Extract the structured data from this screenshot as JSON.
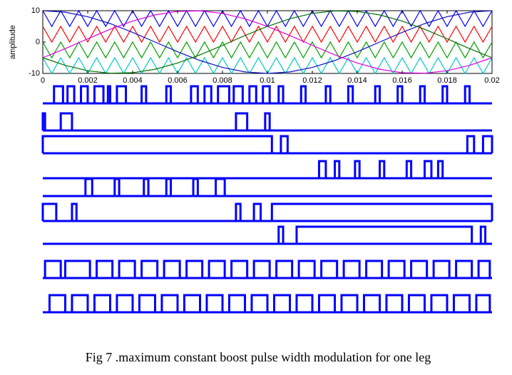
{
  "chart_data": [
    {
      "type": "line",
      "ylabel": "amplitude",
      "xlim": [
        0,
        0.02
      ],
      "ylim": [
        -10,
        10
      ],
      "xticks": [
        0,
        0.002,
        0.004,
        0.006,
        0.008,
        0.01,
        0.012,
        0.014,
        0.016,
        0.018,
        0.02
      ],
      "yticks": [
        10,
        0,
        -10
      ],
      "series": [
        {
          "color": "#0000ff",
          "x": [
            0,
            0.0004,
            0.0008,
            0.0012,
            0.0016,
            0.002,
            0.0024,
            0.0028,
            0.0032,
            0.0036,
            0.004,
            0.0044,
            0.0048,
            0.0052,
            0.0056,
            0.006,
            0.0064,
            0.0068,
            0.0072,
            0.0076,
            0.008,
            0.0084,
            0.0088,
            0.0092,
            0.0096,
            0.01,
            0.0104,
            0.0108,
            0.0112,
            0.0116,
            0.012,
            0.0124,
            0.0128,
            0.0132,
            0.0136,
            0.014,
            0.0144,
            0.0148,
            0.0152,
            0.0156,
            0.016,
            0.0164,
            0.0168,
            0.0172,
            0.0176,
            0.018,
            0.0184,
            0.0188,
            0.0192,
            0.0196,
            0.02
          ],
          "values": [
            10,
            5,
            10,
            5,
            10,
            5,
            10,
            5,
            10,
            5,
            10,
            5,
            10,
            5,
            10,
            5,
            10,
            5,
            10,
            5,
            10,
            5,
            10,
            5,
            10,
            5,
            10,
            5,
            10,
            5,
            10,
            5,
            10,
            5,
            10,
            5,
            10,
            5,
            10,
            5,
            10,
            5,
            10,
            5,
            10,
            5,
            10,
            5,
            10,
            5,
            10
          ]
        },
        {
          "color": "#ff0000",
          "x": [
            0,
            0.0004,
            0.0008,
            0.0012,
            0.0016,
            0.002,
            0.0024,
            0.0028,
            0.0032,
            0.0036,
            0.004,
            0.0044,
            0.0048,
            0.0052,
            0.0056,
            0.006,
            0.0064,
            0.0068,
            0.0072,
            0.0076,
            0.008,
            0.0084,
            0.0088,
            0.0092,
            0.0096,
            0.01,
            0.0104,
            0.0108,
            0.0112,
            0.0116,
            0.012,
            0.0124,
            0.0128,
            0.0132,
            0.0136,
            0.014,
            0.0144,
            0.0148,
            0.0152,
            0.0156,
            0.016,
            0.0164,
            0.0168,
            0.0172,
            0.0176,
            0.018,
            0.0184,
            0.0188,
            0.0192,
            0.0196,
            0.02
          ],
          "values": [
            5,
            0,
            5,
            0,
            5,
            0,
            5,
            0,
            5,
            0,
            5,
            0,
            5,
            0,
            5,
            0,
            5,
            0,
            5,
            0,
            5,
            0,
            5,
            0,
            5,
            0,
            5,
            0,
            5,
            0,
            5,
            0,
            5,
            0,
            5,
            0,
            5,
            0,
            5,
            0,
            5,
            0,
            5,
            0,
            5,
            0,
            5,
            0,
            5,
            0,
            5
          ]
        },
        {
          "color": "#00a000",
          "x": [
            0,
            0.0004,
            0.0008,
            0.0012,
            0.0016,
            0.002,
            0.0024,
            0.0028,
            0.0032,
            0.0036,
            0.004,
            0.0044,
            0.0048,
            0.0052,
            0.0056,
            0.006,
            0.0064,
            0.0068,
            0.0072,
            0.0076,
            0.008,
            0.0084,
            0.0088,
            0.0092,
            0.0096,
            0.01,
            0.0104,
            0.0108,
            0.0112,
            0.0116,
            0.012,
            0.0124,
            0.0128,
            0.0132,
            0.0136,
            0.014,
            0.0144,
            0.0148,
            0.0152,
            0.0156,
            0.016,
            0.0164,
            0.0168,
            0.0172,
            0.0176,
            0.018,
            0.0184,
            0.0188,
            0.0192,
            0.0196,
            0.02
          ],
          "values": [
            0,
            -5,
            0,
            -5,
            0,
            -5,
            0,
            -5,
            0,
            -5,
            0,
            -5,
            0,
            -5,
            0,
            -5,
            0,
            -5,
            0,
            -5,
            0,
            -5,
            0,
            -5,
            0,
            -5,
            0,
            -5,
            0,
            -5,
            0,
            -5,
            0,
            -5,
            0,
            -5,
            0,
            -5,
            0,
            -5,
            0,
            -5,
            0,
            -5,
            0,
            -5,
            0,
            -5,
            0,
            -5,
            0
          ]
        },
        {
          "color": "#00c8c8",
          "x": [
            0,
            0.0004,
            0.0008,
            0.0012,
            0.0016,
            0.002,
            0.0024,
            0.0028,
            0.0032,
            0.0036,
            0.004,
            0.0044,
            0.0048,
            0.0052,
            0.0056,
            0.006,
            0.0064,
            0.0068,
            0.0072,
            0.0076,
            0.008,
            0.0084,
            0.0088,
            0.0092,
            0.0096,
            0.01,
            0.0104,
            0.0108,
            0.0112,
            0.0116,
            0.012,
            0.0124,
            0.0128,
            0.0132,
            0.0136,
            0.014,
            0.0144,
            0.0148,
            0.0152,
            0.0156,
            0.016,
            0.0164,
            0.0168,
            0.0172,
            0.0176,
            0.018,
            0.0184,
            0.0188,
            0.0192,
            0.0196,
            0.02
          ],
          "values": [
            -5,
            -10,
            -5,
            -10,
            -5,
            -10,
            -5,
            -10,
            -5,
            -10,
            -5,
            -10,
            -5,
            -10,
            -5,
            -10,
            -5,
            -10,
            -5,
            -10,
            -5,
            -10,
            -5,
            -10,
            -5,
            -10,
            -5,
            -10,
            -5,
            -10,
            -5,
            -10,
            -5,
            -10,
            -5,
            -10,
            -5,
            -10,
            -5,
            -10,
            -5,
            -10,
            -5,
            -10,
            -5,
            -10,
            -5,
            -10,
            -5,
            -10,
            -5
          ]
        },
        {
          "color": "#1010c0",
          "x": [
            0,
            0.001,
            0.002,
            0.003,
            0.004,
            0.005,
            0.006,
            0.007,
            0.008,
            0.009,
            0.01,
            0.011,
            0.012,
            0.013,
            0.014,
            0.015,
            0.016,
            0.017,
            0.018,
            0.019,
            0.02
          ],
          "values": [
            10,
            9.51,
            8.09,
            5.88,
            3.09,
            0,
            -3.09,
            -5.88,
            -8.09,
            -9.51,
            -10,
            -9.51,
            -8.09,
            -5.88,
            -3.09,
            0,
            3.09,
            5.88,
            8.09,
            9.51,
            10
          ]
        },
        {
          "color": "#e000e0",
          "x": [
            0,
            0.001,
            0.002,
            0.003,
            0.004,
            0.005,
            0.006,
            0.007,
            0.008,
            0.009,
            0.01,
            0.011,
            0.012,
            0.013,
            0.014,
            0.015,
            0.016,
            0.017,
            0.018,
            0.019,
            0.02
          ],
          "values": [
            -5,
            -2.08,
            1.05,
            4.07,
            6.69,
            8.66,
            9.78,
            9.95,
            9.14,
            7.43,
            5,
            2.08,
            -1.05,
            -4.07,
            -6.69,
            -8.66,
            -9.78,
            -9.95,
            -9.14,
            -7.43,
            -5
          ]
        },
        {
          "color": "#007000",
          "x": [
            0,
            0.001,
            0.002,
            0.003,
            0.004,
            0.005,
            0.006,
            0.007,
            0.008,
            0.009,
            0.01,
            0.011,
            0.012,
            0.013,
            0.014,
            0.015,
            0.016,
            0.017,
            0.018,
            0.019,
            0.02
          ],
          "values": [
            -5,
            -7.43,
            -9.14,
            -9.95,
            -9.78,
            -8.66,
            -6.69,
            -4.07,
            -1.05,
            2.08,
            5,
            7.43,
            9.14,
            9.95,
            9.78,
            8.66,
            6.69,
            4.07,
            1.05,
            -2.08,
            -5
          ]
        }
      ]
    },
    {
      "type": "pulse",
      "xlim": [
        0,
        0.02
      ],
      "color": "#0000ff",
      "series": [
        {
          "intervals": [
            [
              0.0005,
              0.0009
            ],
            [
              0.0011,
              0.0014
            ],
            [
              0.0017,
              0.002
            ],
            [
              0.0023,
              0.0027
            ],
            [
              0.0029,
              0.003
            ],
            [
              0.0033,
              0.0037
            ],
            [
              0.0044,
              0.0046
            ],
            [
              0.0055,
              0.0057
            ],
            [
              0.0066,
              0.0069
            ],
            [
              0.0072,
              0.0075
            ],
            [
              0.0078,
              0.0083
            ],
            [
              0.0085,
              0.0089
            ],
            [
              0.0092,
              0.0095
            ],
            [
              0.0098,
              0.0101
            ],
            [
              0.0105,
              0.0107
            ],
            [
              0.0115,
              0.0117
            ],
            [
              0.0126,
              0.0128
            ],
            [
              0.0136,
              0.0138
            ],
            [
              0.0148,
              0.015
            ],
            [
              0.0158,
              0.016
            ],
            [
              0.0168,
              0.017
            ],
            [
              0.0178,
              0.018
            ],
            [
              0.0188,
              0.019
            ]
          ]
        },
        {
          "intervals": [
            [
              0,
              0.0001
            ],
            [
              0.0008,
              0.0013
            ],
            [
              0.0086,
              0.0091
            ],
            [
              0.0099,
              0.0101
            ]
          ]
        },
        {
          "intervals": [
            [
              0,
              0.0102
            ],
            [
              0.0106,
              0.0109
            ],
            [
              0.0189,
              0.0192
            ],
            [
              0.0196,
              0.02
            ]
          ]
        },
        {
          "intervals": [
            [
              0.0123,
              0.0126
            ],
            [
              0.013,
              0.0132
            ],
            [
              0.0139,
              0.0141
            ],
            [
              0.015,
              0.0152
            ],
            [
              0.0162,
              0.0164
            ],
            [
              0.017,
              0.0173
            ],
            [
              0.0176,
              0.0178
            ]
          ]
        },
        {
          "intervals": [
            [
              0.0019,
              0.0022
            ],
            [
              0.0032,
              0.0034
            ],
            [
              0.0045,
              0.0047
            ],
            [
              0.0055,
              0.0057
            ],
            [
              0.0067,
              0.0069
            ],
            [
              0.0077,
              0.0081
            ]
          ]
        },
        {
          "intervals": [
            [
              0,
              0.0006
            ],
            [
              0.0013,
              0.0015
            ],
            [
              0.0086,
              0.0088
            ],
            [
              0.0094,
              0.0097
            ],
            [
              0.0102,
              0.02
            ]
          ]
        },
        {
          "intervals": [
            [
              0.0105,
              0.0107
            ],
            [
              0.0113,
              0.0191
            ],
            [
              0.0195,
              0.0197
            ]
          ]
        },
        {
          "intervals": [
            [
              0.0001,
              0.0008
            ],
            [
              0.001,
              0.0021
            ],
            [
              0.0024,
              0.0031
            ],
            [
              0.0034,
              0.0041
            ],
            [
              0.0044,
              0.0051
            ],
            [
              0.0054,
              0.0061
            ],
            [
              0.0064,
              0.0071
            ],
            [
              0.0074,
              0.0081
            ],
            [
              0.0084,
              0.0091
            ],
            [
              0.0094,
              0.0101
            ],
            [
              0.0104,
              0.0111
            ],
            [
              0.0114,
              0.0121
            ],
            [
              0.0124,
              0.0131
            ],
            [
              0.0134,
              0.0141
            ],
            [
              0.0144,
              0.0151
            ],
            [
              0.0154,
              0.0161
            ],
            [
              0.0164,
              0.0171
            ],
            [
              0.0174,
              0.0181
            ],
            [
              0.0184,
              0.0191
            ],
            [
              0.0194,
              0.0199
            ]
          ]
        },
        {
          "intervals": [
            [
              0.0003,
              0.001
            ],
            [
              0.0013,
              0.002
            ],
            [
              0.0023,
              0.003
            ],
            [
              0.0033,
              0.004
            ],
            [
              0.0043,
              0.005
            ],
            [
              0.0053,
              0.006
            ],
            [
              0.0063,
              0.007
            ],
            [
              0.0073,
              0.008
            ],
            [
              0.0083,
              0.009
            ],
            [
              0.0093,
              0.01
            ],
            [
              0.0103,
              0.011
            ],
            [
              0.0113,
              0.012
            ],
            [
              0.0123,
              0.013
            ],
            [
              0.0133,
              0.014
            ],
            [
              0.0143,
              0.015
            ],
            [
              0.0153,
              0.016
            ],
            [
              0.0163,
              0.017
            ],
            [
              0.0173,
              0.018
            ],
            [
              0.0183,
              0.019
            ],
            [
              0.0193,
              0.0199
            ]
          ]
        }
      ]
    }
  ],
  "caption": "Fig 7 .maximum constant boost pulse width modulation for one leg"
}
